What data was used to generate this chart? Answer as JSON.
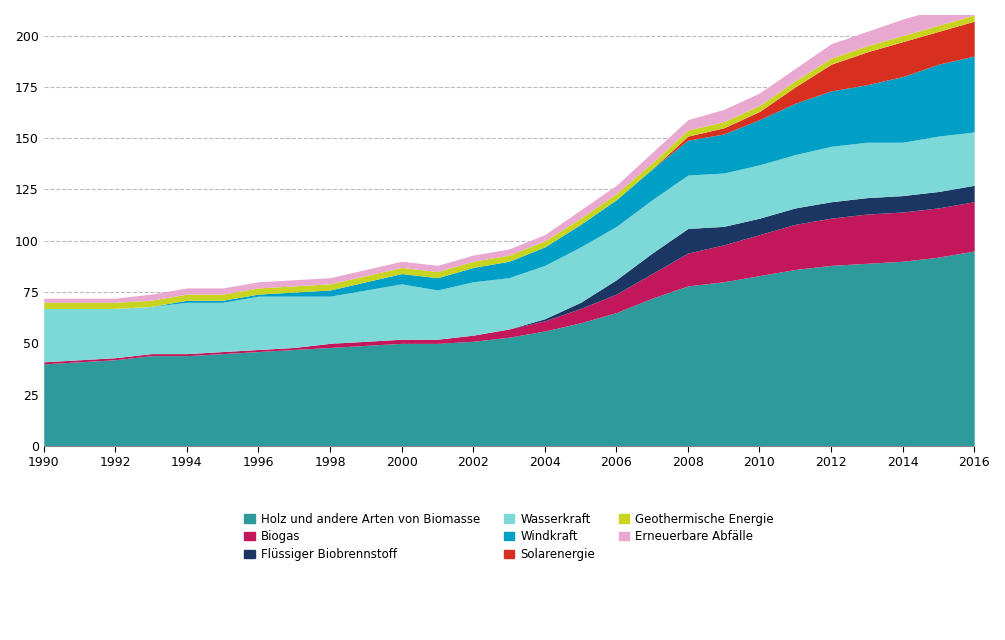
{
  "years": [
    1990,
    1991,
    1992,
    1993,
    1994,
    1995,
    1996,
    1997,
    1998,
    1999,
    2000,
    2001,
    2002,
    2003,
    2004,
    2005,
    2006,
    2007,
    2008,
    2009,
    2010,
    2011,
    2012,
    2013,
    2014,
    2015,
    2016
  ],
  "series": {
    "Holz und andere Arten von Biomasse": [
      40,
      41,
      42,
      44,
      44,
      45,
      46,
      47,
      48,
      49,
      50,
      50,
      51,
      53,
      56,
      60,
      65,
      72,
      78,
      80,
      83,
      86,
      88,
      89,
      90,
      92,
      95
    ],
    "Biogas": [
      1,
      1,
      1,
      1,
      1,
      1,
      1,
      1,
      2,
      2,
      2,
      2,
      3,
      4,
      5,
      7,
      9,
      12,
      16,
      18,
      20,
      22,
      23,
      24,
      24,
      24,
      24
    ],
    "Flüssiger Biobrennstoff": [
      0,
      0,
      0,
      0,
      0,
      0,
      0,
      0,
      0,
      0,
      0,
      0,
      0,
      0,
      1,
      3,
      7,
      10,
      12,
      9,
      8,
      8,
      8,
      8,
      8,
      8,
      8
    ],
    "Wasserkraft": [
      26,
      25,
      24,
      23,
      25,
      24,
      26,
      25,
      23,
      25,
      27,
      24,
      26,
      25,
      26,
      27,
      26,
      26,
      26,
      26,
      26,
      26,
      27,
      27,
      26,
      27,
      26
    ],
    "Windkraft": [
      0,
      0,
      0,
      0,
      1,
      1,
      1,
      2,
      3,
      4,
      5,
      6,
      7,
      8,
      9,
      11,
      13,
      15,
      17,
      19,
      22,
      25,
      27,
      28,
      32,
      35,
      37
    ],
    "Solarenergie": [
      0,
      0,
      0,
      0,
      0,
      0,
      0,
      0,
      0,
      0,
      0,
      0,
      0,
      0,
      0,
      0,
      0,
      0,
      2,
      3,
      4,
      8,
      13,
      16,
      17,
      16,
      17
    ],
    "Geothermische Energie": [
      3,
      3,
      3,
      3,
      3,
      3,
      3,
      3,
      3,
      3,
      3,
      3,
      3,
      3,
      3,
      3,
      3,
      3,
      3,
      3,
      3,
      3,
      3,
      3,
      3,
      3,
      3
    ],
    "Erneuerbare Abfälle": [
      2,
      2,
      2,
      3,
      3,
      3,
      3,
      3,
      3,
      3,
      3,
      3,
      3,
      3,
      3,
      4,
      4,
      5,
      5,
      6,
      6,
      6,
      7,
      7,
      8,
      8,
      9
    ]
  },
  "colors": {
    "Holz und andere Arten von Biomasse": "#2D9B9B",
    "Biogas": "#C2185B",
    "Flüssiger Biobrennstoff": "#1C3664",
    "Wasserkraft": "#7DD8D8",
    "Windkraft": "#00A0C6",
    "Solarenergie": "#D83020",
    "Geothermische Energie": "#C8D420",
    "Erneuerbare Abfälle": "#E8A8D0"
  },
  "stack_order": [
    "Holz und andere Arten von Biomasse",
    "Biogas",
    "Flüssiger Biobrennstoff",
    "Wasserkraft",
    "Windkraft",
    "Solarenergie",
    "Geothermische Energie",
    "Erneuerbare Abfälle"
  ],
  "legend_order": [
    "Holz und andere Arten von Biomasse",
    "Biogas",
    "Flüssiger Biobrennstoff",
    "Wasserkraft",
    "Windkraft",
    "Solarenergie",
    "Geothermische Energie",
    "Erneuerbare Abfälle"
  ],
  "ylim": [
    0,
    210
  ],
  "yticks": [
    0,
    25,
    50,
    75,
    100,
    125,
    150,
    175,
    200
  ],
  "xlim": [
    1990,
    2016
  ],
  "xticks": [
    1990,
    1992,
    1994,
    1996,
    1998,
    2000,
    2002,
    2004,
    2006,
    2008,
    2010,
    2012,
    2014,
    2016
  ],
  "background_color": "#FFFFFF",
  "grid_color": "#BBBBBB",
  "grid_linestyle": "--",
  "grid_linewidth": 0.8
}
